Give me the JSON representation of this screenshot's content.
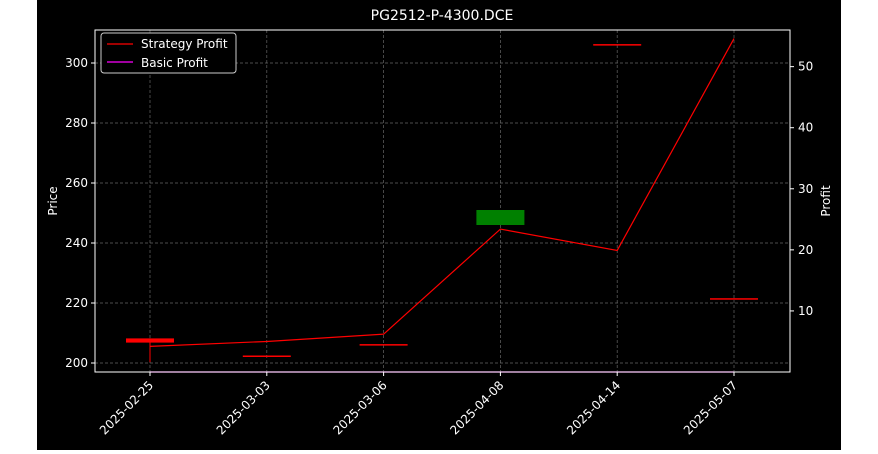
{
  "chart_data": {
    "type": "line",
    "title": "PG2512-P-4300.DCE",
    "ylabel_left": "Price",
    "ylabel_right": "Profit",
    "xlabel": "",
    "categories": [
      "2025-02-25",
      "2025-03-03",
      "2025-03-06",
      "2025-04-08",
      "2025-04-14",
      "2025-05-07"
    ],
    "ylim_left": [
      197,
      311
    ],
    "yticks_left": [
      200,
      220,
      240,
      260,
      280,
      300
    ],
    "ylim_right": [
      0,
      56
    ],
    "yticks_right": [
      10,
      20,
      30,
      40,
      50
    ],
    "grid": true,
    "legend_position": "top-left",
    "legend": [
      {
        "label": "Strategy Profit",
        "color": "#ff0000"
      },
      {
        "label": "Basic Profit",
        "color": "#ff00ff"
      }
    ],
    "candles": [
      {
        "date": "2025-02-25",
        "open": 208.2,
        "close": 206.8,
        "high": 208.2,
        "low": 200.3,
        "color": "#ff0000"
      },
      {
        "date": "2025-03-03",
        "open": 202.5,
        "close": 202.5,
        "high": 202.5,
        "low": 202.5,
        "color": "#ff0000"
      },
      {
        "date": "2025-03-06",
        "open": 206.3,
        "close": 206.3,
        "high": 206.3,
        "low": 206.3,
        "color": "#ff0000"
      },
      {
        "date": "2025-04-08",
        "open": 246.0,
        "close": 251.0,
        "high": 251.0,
        "low": 246.0,
        "color": "#008000"
      },
      {
        "date": "2025-04-14",
        "open": 306.3,
        "close": 306.3,
        "high": 306.3,
        "low": 306.3,
        "color": "#ff0000"
      },
      {
        "date": "2025-05-07",
        "open": 221.6,
        "close": 221.6,
        "high": 221.6,
        "low": 221.6,
        "color": "#ff0000"
      }
    ],
    "series": [
      {
        "name": "Strategy Profit",
        "axis": "right",
        "color": "#ff0000",
        "values": [
          4.2,
          5.0,
          6.2,
          23.4,
          19.9,
          54.6
        ]
      },
      {
        "name": "Basic Profit",
        "axis": "right",
        "color": "#ff00ff",
        "values": [
          0,
          0,
          0,
          0,
          0,
          0
        ]
      }
    ]
  }
}
